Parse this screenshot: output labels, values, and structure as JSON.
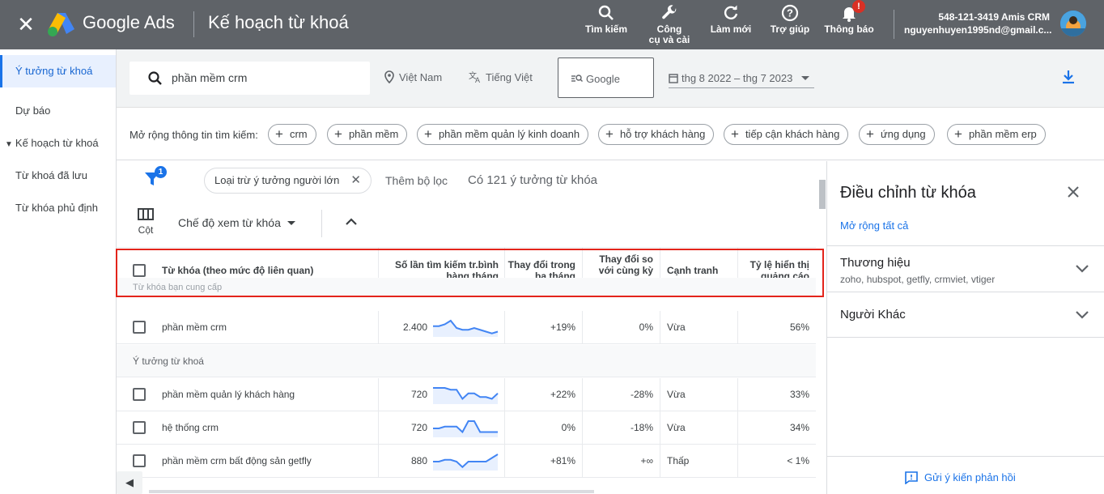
{
  "topbar": {
    "close_icon": "close-icon",
    "brand": "Google Ads",
    "page_title": "Kế hoạch từ khoá",
    "actions": [
      {
        "label": "Tìm kiếm",
        "icon": "search-icon"
      },
      {
        "label": "Công\ncụ và cài",
        "icon": "wrench-icon"
      },
      {
        "label": "Làm mới",
        "icon": "refresh-icon"
      },
      {
        "label": "Trợ giúp",
        "icon": "help-icon"
      },
      {
        "label": "Thông báo",
        "icon": "bell-icon",
        "badge": "!"
      }
    ],
    "account_id": "548-121-3419 Amis CRM",
    "account_email": "nguyenhuyen1995nd@gmail.c..."
  },
  "leftnav": {
    "items": [
      {
        "label": "Ý tưởng từ khoá",
        "active": true
      },
      {
        "label": "Dự báo"
      },
      {
        "label": "Kế hoạch từ khoá",
        "parent": true
      },
      {
        "label": "Từ khoá đã lưu"
      },
      {
        "label": "Từ khóa phủ định"
      }
    ]
  },
  "search": {
    "value": "phần mềm crm",
    "location": "Việt Nam",
    "language": "Tiếng Việt",
    "network": "Google",
    "date_range": "thg 8 2022 – thg 7 2023"
  },
  "refine": {
    "label": "Mở rộng thông tin tìm kiếm:",
    "chips": [
      "crm",
      "phần mềm",
      "phần mềm quản lý kinh doanh",
      "hỗ trợ khách hàng",
      "tiếp cận khách hàng",
      "ứng dụng",
      "phần mềm erp"
    ]
  },
  "toolbar": {
    "filter_badge": "1",
    "exclude_chip": "Loại trừ ý tưởng người lớn",
    "add_filter": "Thêm bộ lọc",
    "count": "Có 121 ý tưởng từ khóa",
    "columns_label": "Cột",
    "view_mode": "Chế độ xem từ khóa"
  },
  "table": {
    "headers": {
      "keyword": "Từ khóa (theo mức độ liên quan)",
      "searches": "Số lần tìm kiếm tr.bình hàng tháng",
      "three_month": "Thay đổi trong ba tháng",
      "yoy": "Thay đổi so với cùng kỳ năm trước",
      "competition": "Cạnh tranh",
      "impression_share": "Tỷ lệ hiển thị quảng cáo"
    },
    "provided_group": "Từ khóa bạn cung cấp",
    "ideas_group": "Ý tưởng từ khoá",
    "provided_rows": [
      {
        "keyword": "phần mềm crm",
        "searches": "2.400",
        "three_month": "+19%",
        "yoy": "0%",
        "competition": "Vừa",
        "share": "56%",
        "trend": [
          5,
          5,
          6,
          8,
          4,
          3,
          3,
          4,
          3,
          2,
          1,
          2
        ]
      }
    ],
    "idea_rows": [
      {
        "keyword": "phần mềm quản lý khách hàng",
        "searches": "720",
        "three_month": "+22%",
        "yoy": "-28%",
        "competition": "Vừa",
        "share": "33%",
        "trend": [
          8,
          8,
          8,
          7,
          7,
          2,
          5,
          5,
          3,
          3,
          2,
          5
        ]
      },
      {
        "keyword": "hệ thống crm",
        "searches": "720",
        "three_month": "0%",
        "yoy": "-18%",
        "competition": "Vừa",
        "share": "34%",
        "trend": [
          4,
          4,
          5,
          5,
          5,
          2,
          8,
          8,
          2,
          2,
          2,
          2
        ]
      },
      {
        "keyword": "phần mềm crm bất động sản getfly",
        "searches": "880",
        "three_month": "+81%",
        "yoy": "+∞",
        "competition": "Thấp",
        "share": "< 1%",
        "trend": [
          4,
          4,
          5,
          5,
          4,
          1,
          4,
          4,
          4,
          4,
          6,
          8
        ]
      }
    ]
  },
  "rightpanel": {
    "title": "Điều chỉnh từ khóa",
    "expand_all": "Mở rộng tất cả",
    "sections": [
      {
        "title": "Thương hiệu",
        "subtitle": "zoho, hubspot, getfly, crmviet, vtiger"
      },
      {
        "title": "Người Khác",
        "subtitle": ""
      }
    ],
    "feedback": "Gửi ý kiến phản hồi"
  }
}
